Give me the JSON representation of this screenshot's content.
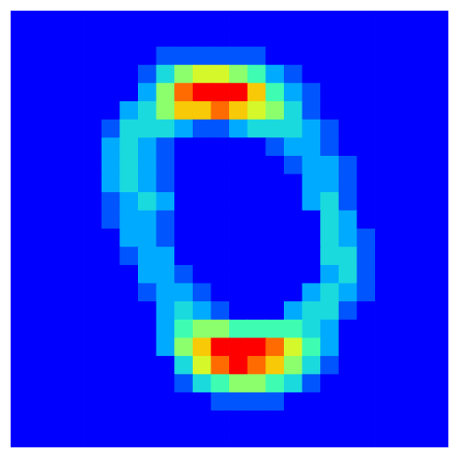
{
  "chart_data": {
    "type": "heatmap",
    "tick_labels": false,
    "cells": [
      [
        0,
        0,
        0,
        0,
        0,
        0,
        0,
        0,
        0,
        0,
        0,
        0,
        0,
        0,
        0,
        0,
        0,
        0,
        0,
        0,
        0,
        0,
        0,
        0
      ],
      [
        0,
        0,
        0,
        0,
        0,
        0,
        0,
        0,
        0,
        0,
        0,
        0,
        0,
        0,
        0,
        0,
        0,
        0,
        0,
        0,
        0,
        0,
        0,
        0
      ],
      [
        0,
        0,
        0,
        0,
        0,
        0,
        0,
        0,
        1,
        1,
        1,
        1,
        1,
        1,
        0,
        0,
        0,
        0,
        0,
        0,
        0,
        0,
        0,
        0
      ],
      [
        0,
        0,
        0,
        0,
        0,
        0,
        0,
        1,
        3,
        5,
        6,
        6,
        5,
        4,
        2,
        1,
        0,
        0,
        0,
        0,
        0,
        0,
        0,
        0
      ],
      [
        0,
        0,
        0,
        0,
        0,
        0,
        0,
        2,
        5,
        8,
        9,
        9,
        9,
        7,
        4,
        2,
        1,
        0,
        0,
        0,
        0,
        0,
        0,
        0
      ],
      [
        0,
        0,
        0,
        0,
        0,
        0,
        2,
        3,
        5,
        7,
        7,
        8,
        7,
        6,
        5,
        3,
        1,
        0,
        0,
        0,
        0,
        0,
        0,
        0
      ],
      [
        0,
        0,
        0,
        0,
        0,
        1,
        3,
        3,
        3,
        2,
        1,
        1,
        2,
        3,
        3,
        3,
        2,
        1,
        0,
        0,
        0,
        0,
        0,
        0
      ],
      [
        0,
        0,
        0,
        0,
        0,
        2,
        3,
        2,
        1,
        0,
        0,
        0,
        0,
        0,
        1,
        2,
        2,
        1,
        0,
        0,
        0,
        0,
        0,
        0
      ],
      [
        0,
        0,
        0,
        0,
        0,
        2,
        3,
        2,
        1,
        0,
        0,
        0,
        0,
        0,
        0,
        1,
        2,
        2,
        1,
        0,
        0,
        0,
        0,
        0
      ],
      [
        0,
        0,
        0,
        0,
        0,
        2,
        3,
        2,
        1,
        0,
        0,
        0,
        0,
        0,
        0,
        0,
        2,
        2,
        1,
        0,
        0,
        0,
        0,
        0
      ],
      [
        0,
        0,
        0,
        0,
        0,
        1,
        2,
        3,
        2,
        0,
        0,
        0,
        0,
        0,
        0,
        0,
        2,
        3,
        1,
        0,
        0,
        0,
        0,
        0
      ],
      [
        0,
        0,
        0,
        0,
        0,
        1,
        2,
        2,
        1,
        0,
        0,
        0,
        0,
        0,
        0,
        0,
        0,
        3,
        2,
        0,
        0,
        0,
        0,
        0
      ],
      [
        0,
        0,
        0,
        0,
        0,
        0,
        2,
        2,
        1,
        0,
        0,
        0,
        0,
        0,
        0,
        0,
        0,
        3,
        2,
        1,
        0,
        0,
        0,
        0
      ],
      [
        0,
        0,
        0,
        0,
        0,
        0,
        1,
        2,
        2,
        0,
        0,
        0,
        0,
        0,
        0,
        0,
        0,
        3,
        3,
        1,
        0,
        0,
        0,
        0
      ],
      [
        0,
        0,
        0,
        0,
        0,
        0,
        0,
        2,
        2,
        1,
        0,
        0,
        0,
        0,
        0,
        0,
        0,
        2,
        3,
        1,
        0,
        0,
        0,
        0
      ],
      [
        0,
        0,
        0,
        0,
        0,
        0,
        0,
        1,
        2,
        2,
        1,
        0,
        0,
        0,
        0,
        0,
        2,
        3,
        2,
        1,
        0,
        0,
        0,
        0
      ],
      [
        0,
        0,
        0,
        0,
        0,
        0,
        0,
        0,
        2,
        3,
        2,
        1,
        0,
        0,
        0,
        2,
        3,
        3,
        1,
        0,
        0,
        0,
        0,
        0
      ],
      [
        0,
        0,
        0,
        0,
        0,
        0,
        0,
        0,
        2,
        4,
        5,
        5,
        4,
        4,
        4,
        4,
        3,
        2,
        0,
        0,
        0,
        0,
        0,
        0
      ],
      [
        0,
        0,
        0,
        0,
        0,
        0,
        0,
        0,
        2,
        5,
        7,
        9,
        9,
        9,
        8,
        6,
        4,
        2,
        0,
        0,
        0,
        0,
        0,
        0
      ],
      [
        0,
        0,
        0,
        0,
        0,
        0,
        0,
        0,
        0,
        3,
        6,
        8,
        9,
        8,
        7,
        5,
        3,
        1,
        0,
        0,
        0,
        0,
        0,
        0
      ],
      [
        0,
        0,
        0,
        0,
        0,
        0,
        0,
        0,
        0,
        1,
        3,
        4,
        5,
        5,
        4,
        3,
        1,
        0,
        0,
        0,
        0,
        0,
        0,
        0
      ],
      [
        0,
        0,
        0,
        0,
        0,
        0,
        0,
        0,
        0,
        0,
        0,
        1,
        1,
        1,
        1,
        0,
        0,
        0,
        0,
        0,
        0,
        0,
        0,
        0
      ],
      [
        0,
        0,
        0,
        0,
        0,
        0,
        0,
        0,
        0,
        0,
        0,
        0,
        0,
        0,
        0,
        0,
        0,
        0,
        0,
        0,
        0,
        0,
        0,
        0
      ],
      [
        0,
        0,
        0,
        0,
        0,
        0,
        0,
        0,
        0,
        0,
        0,
        0,
        0,
        0,
        0,
        0,
        0,
        0,
        0,
        0,
        0,
        0,
        0,
        0
      ]
    ]
  }
}
